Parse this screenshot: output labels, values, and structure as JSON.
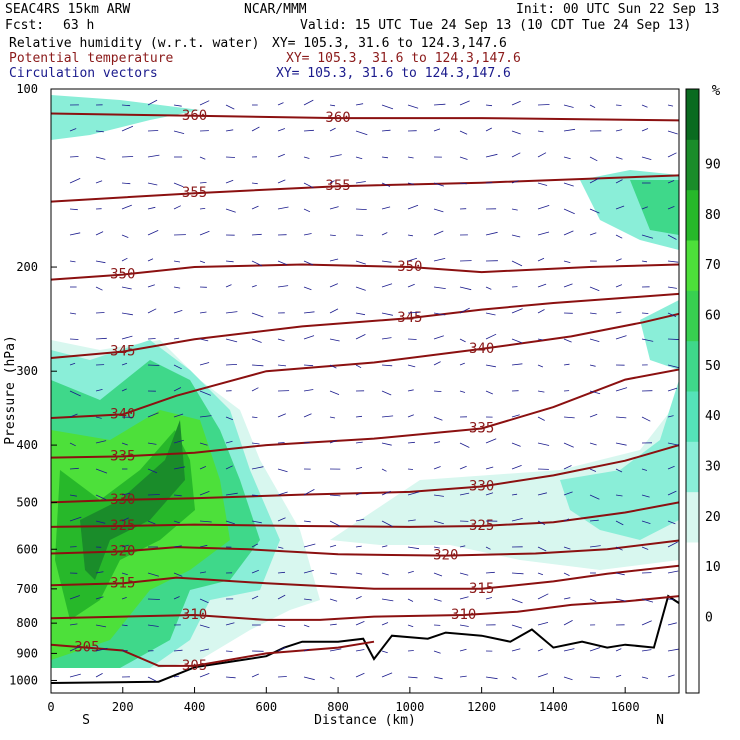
{
  "header": {
    "model": "SEAC4RS 15km ARW",
    "org": "NCAR/MMM",
    "init": "Init: 00 UTC Sun 22 Sep 13",
    "fcst_label": "Fcst:",
    "fcst_value": "63 h",
    "valid": "Valid: 15 UTC Tue 24 Sep 13 (10 CDT Tue 24 Sep 13)",
    "field1": "Relative humidity (w.r.t. water)",
    "field1_xy": "XY= 105.3, 31.6 to 124.3,147.6",
    "field2": "Potential temperature",
    "field2_xy": "XY= 105.3, 31.6 to 124.3,147.6",
    "field3": "Circulation vectors",
    "field3_xy": "XY= 105.3, 31.6 to 124.3,147.6"
  },
  "colors": {
    "rh_field1_text": "#000000",
    "theta_line": "#8b1010",
    "theta_text": "#8b1a1a",
    "vector_text": "#1a1a8c",
    "rh_scale": [
      "#ffffff",
      "#ffffff",
      "#ffffff",
      "#d8f7ef",
      "#8aeed8",
      "#55e3b8",
      "#3fd88a",
      "#38d050",
      "#4de03a",
      "#27b82a",
      "#1a8c2a",
      "#0a6b20"
    ]
  },
  "chart_data": {
    "type": "contour",
    "xlabel": "Distance (km)",
    "ylabel": "Pressure (hPa)",
    "xlim": [
      0,
      1750
    ],
    "ylim": [
      1050,
      100
    ],
    "x_ticks": [
      0,
      200,
      400,
      600,
      800,
      1000,
      1200,
      1400,
      1600
    ],
    "y_ticks": [
      100,
      200,
      300,
      400,
      500,
      600,
      700,
      800,
      900,
      1000
    ],
    "y_scale": "log-pressure",
    "endpoints": {
      "left": "S",
      "right": "N"
    },
    "colorbar": {
      "unit": "%",
      "labels": [
        0,
        10,
        20,
        30,
        40,
        50,
        60,
        70,
        80,
        90
      ]
    },
    "theta_contours": [
      {
        "label": "360",
        "points": [
          [
            0,
            110
          ],
          [
            400,
            111
          ],
          [
            800,
            112
          ],
          [
            1200,
            112
          ],
          [
            1750,
            113
          ]
        ]
      },
      {
        "label": "355",
        "points": [
          [
            0,
            155
          ],
          [
            400,
            150
          ],
          [
            800,
            146
          ],
          [
            1200,
            144
          ],
          [
            1750,
            140
          ]
        ]
      },
      {
        "label": "350",
        "points": [
          [
            0,
            210
          ],
          [
            200,
            206
          ],
          [
            400,
            200
          ],
          [
            700,
            198
          ],
          [
            1000,
            200
          ],
          [
            1200,
            204
          ],
          [
            1500,
            200
          ],
          [
            1750,
            198
          ]
        ]
      },
      {
        "label": "345",
        "points": [
          [
            0,
            285
          ],
          [
            200,
            278
          ],
          [
            400,
            265
          ],
          [
            700,
            252
          ],
          [
            1000,
            244
          ],
          [
            1200,
            236
          ],
          [
            1400,
            230
          ],
          [
            1750,
            222
          ]
        ]
      },
      {
        "label": "340",
        "points": [
          [
            0,
            360
          ],
          [
            200,
            355
          ],
          [
            350,
            330
          ],
          [
            600,
            300
          ],
          [
            900,
            290
          ],
          [
            1200,
            275
          ],
          [
            1450,
            262
          ],
          [
            1650,
            248
          ],
          [
            1750,
            240
          ]
        ]
      },
      {
        "label": "335",
        "points": [
          [
            0,
            420
          ],
          [
            200,
            418
          ],
          [
            400,
            412
          ],
          [
            600,
            400
          ],
          [
            900,
            390
          ],
          [
            1200,
            375
          ],
          [
            1400,
            345
          ],
          [
            1600,
            310
          ],
          [
            1750,
            298
          ]
        ]
      },
      {
        "label": "330",
        "points": [
          [
            0,
            500
          ],
          [
            200,
            495
          ],
          [
            400,
            492
          ],
          [
            700,
            485
          ],
          [
            1000,
            480
          ],
          [
            1200,
            470
          ],
          [
            1400,
            450
          ],
          [
            1600,
            425
          ],
          [
            1750,
            400
          ]
        ]
      },
      {
        "label": "325",
        "points": [
          [
            0,
            550
          ],
          [
            200,
            548
          ],
          [
            400,
            545
          ],
          [
            700,
            548
          ],
          [
            1000,
            550
          ],
          [
            1200,
            548
          ],
          [
            1400,
            540
          ],
          [
            1600,
            520
          ],
          [
            1750,
            500
          ]
        ]
      },
      {
        "label": "320",
        "points": [
          [
            0,
            610
          ],
          [
            200,
            605
          ],
          [
            350,
            595
          ],
          [
            550,
            600
          ],
          [
            800,
            612
          ],
          [
            1100,
            615
          ],
          [
            1350,
            610
          ],
          [
            1550,
            600
          ],
          [
            1750,
            580
          ]
        ]
      },
      {
        "label": "315",
        "points": [
          [
            0,
            690
          ],
          [
            200,
            685
          ],
          [
            350,
            670
          ],
          [
            600,
            685
          ],
          [
            900,
            700
          ],
          [
            1200,
            700
          ],
          [
            1400,
            680
          ],
          [
            1550,
            660
          ],
          [
            1750,
            640
          ]
        ]
      },
      {
        "label": "310",
        "points": [
          [
            0,
            785
          ],
          [
            200,
            780
          ],
          [
            400,
            775
          ],
          [
            600,
            790
          ],
          [
            750,
            790
          ],
          [
            900,
            780
          ],
          [
            1150,
            775
          ],
          [
            1300,
            765
          ],
          [
            1450,
            745
          ],
          [
            1600,
            735
          ],
          [
            1750,
            720
          ]
        ]
      },
      {
        "label": "305",
        "points": [
          [
            0,
            870
          ],
          [
            100,
            880
          ],
          [
            200,
            890
          ],
          [
            300,
            945
          ],
          [
            400,
            945
          ],
          [
            600,
            900
          ],
          [
            800,
            880
          ],
          [
            900,
            860
          ]
        ]
      }
    ],
    "terrain": [
      [
        0,
        1010
      ],
      [
        300,
        1005
      ],
      [
        400,
        950
      ],
      [
        500,
        930
      ],
      [
        600,
        910
      ],
      [
        650,
        880
      ],
      [
        700,
        860
      ],
      [
        800,
        860
      ],
      [
        870,
        850
      ],
      [
        900,
        920
      ],
      [
        950,
        840
      ],
      [
        1050,
        850
      ],
      [
        1100,
        830
      ],
      [
        1200,
        840
      ],
      [
        1280,
        860
      ],
      [
        1340,
        820
      ],
      [
        1400,
        880
      ],
      [
        1480,
        860
      ],
      [
        1550,
        880
      ],
      [
        1600,
        870
      ],
      [
        1680,
        880
      ],
      [
        1720,
        720
      ],
      [
        1750,
        740
      ]
    ]
  }
}
